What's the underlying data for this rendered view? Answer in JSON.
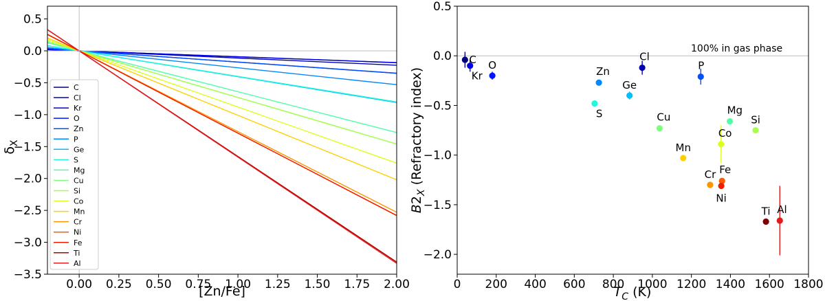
{
  "chart_data": [
    {
      "type": "line",
      "panel": "left",
      "xlabel": "[Zn/Fe]",
      "ylabel": "δ_X",
      "xlim": [
        -0.2,
        2.0
      ],
      "ylim": [
        -3.5,
        0.7
      ],
      "xticks": [
        0.0,
        0.25,
        0.5,
        0.75,
        1.0,
        1.25,
        1.5,
        1.75,
        2.0
      ],
      "xtick_labels": [
        "0.00",
        "0.25",
        "0.50",
        "0.75",
        "1.00",
        "1.25",
        "1.50",
        "1.75",
        "2.00"
      ],
      "yticks": [
        0.5,
        0.0,
        -0.5,
        -1.0,
        -1.5,
        -2.0,
        -2.5,
        -3.0,
        -3.5
      ],
      "ytick_labels": [
        "0.5",
        "0.0",
        "−0.5",
        "−1.0",
        "−1.5",
        "−2.0",
        "−2.5",
        "−3.0",
        "−3.5"
      ],
      "reference_lines": {
        "x": 0.0,
        "y": 0.0
      },
      "legend_position": "lower-left",
      "series": [
        {
          "name": "C",
          "color": "#00007f",
          "slope": -0.093
        },
        {
          "name": "Cl",
          "color": "#0000b2",
          "slope": -0.113
        },
        {
          "name": "Kr",
          "color": "#0000e8",
          "slope": -0.092
        },
        {
          "name": "O",
          "color": "#0014ff",
          "slope": -0.176
        },
        {
          "name": "Zn",
          "color": "#0050ff",
          "slope": -0.175
        },
        {
          "name": "P",
          "color": "#0088ff",
          "slope": -0.265
        },
        {
          "name": "Ge",
          "color": "#00c0ff",
          "slope": -0.405
        },
        {
          "name": "S",
          "color": "#1ff8dd",
          "slope": -0.4
        },
        {
          "name": "Mg",
          "color": "#4fffa6",
          "slope": -0.64
        },
        {
          "name": "Cu",
          "color": "#7fff7f",
          "slope": -0.73
        },
        {
          "name": "Si",
          "color": "#a6ff4f",
          "slope": -0.73
        },
        {
          "name": "Co",
          "color": "#dcff1f",
          "slope": -0.88
        },
        {
          "name": "Mn",
          "color": "#ffd000",
          "slope": -1.01
        },
        {
          "name": "Cr",
          "color": "#ff9400",
          "slope": -1.265
        },
        {
          "name": "Ni",
          "color": "#ff5a00",
          "slope": -1.29
        },
        {
          "name": "Fe",
          "color": "#f01e00",
          "slope": -1.29
        },
        {
          "name": "Ti",
          "color": "#b20000",
          "slope": -1.655
        },
        {
          "name": "Al",
          "color": "#e31a1c",
          "slope": -1.665
        }
      ]
    },
    {
      "type": "scatter",
      "panel": "right",
      "xlabel": "T_C (K)",
      "ylabel": "B2_X (Refractory index)",
      "xlim": [
        0,
        1800
      ],
      "ylim": [
        -2.2,
        0.5
      ],
      "xticks": [
        0,
        200,
        400,
        600,
        800,
        1000,
        1200,
        1400,
        1600,
        1800
      ],
      "xtick_labels": [
        "0",
        "200",
        "400",
        "600",
        "800",
        "1000",
        "1200",
        "1400",
        "1600",
        "1800"
      ],
      "yticks": [
        0.5,
        0.0,
        -0.5,
        -1.0,
        -1.5,
        -2.0
      ],
      "ytick_labels": [
        "0.5",
        "0.0",
        "−0.5",
        "−1.0",
        "−1.5",
        "−2.0"
      ],
      "reference_line_y": 0.0,
      "annotation": "100% in gas phase",
      "points": [
        {
          "name": "C",
          "x": 40,
          "y": -0.04,
          "err": 0.08,
          "color": "#00007f",
          "label_pos": "right"
        },
        {
          "name": "Kr",
          "x": 66,
          "y": -0.1,
          "err": 0.06,
          "color": "#0000e8",
          "label_pos": "below-right"
        },
        {
          "name": "O",
          "x": 180,
          "y": -0.2,
          "err": 0.04,
          "color": "#0014ff",
          "label_pos": "above"
        },
        {
          "name": "Zn",
          "x": 726,
          "y": -0.27,
          "err": 0.02,
          "color": "#0088ff",
          "label_pos": "above-right"
        },
        {
          "name": "S",
          "x": 704,
          "y": -0.48,
          "err": 0.03,
          "color": "#1ff8dd",
          "label_pos": "below-right"
        },
        {
          "name": "Ge",
          "x": 883,
          "y": -0.4,
          "err": 0.04,
          "color": "#00c0ff",
          "label_pos": "above"
        },
        {
          "name": "Cl",
          "x": 948,
          "y": -0.12,
          "err": 0.07,
          "color": "#0000b2",
          "label_pos": "above-right"
        },
        {
          "name": "P",
          "x": 1248,
          "y": -0.21,
          "err": 0.08,
          "color": "#0050ff",
          "label_pos": "above-right"
        },
        {
          "name": "Cu",
          "x": 1037,
          "y": -0.73,
          "err": 0.03,
          "color": "#7fff7f",
          "label_pos": "above-right"
        },
        {
          "name": "Mg",
          "x": 1397,
          "y": -0.66,
          "err": 0.03,
          "color": "#4fffa6",
          "label_pos": "above-right"
        },
        {
          "name": "Si",
          "x": 1529,
          "y": -0.75,
          "err": 0.03,
          "color": "#a6ff4f",
          "label_pos": "above"
        },
        {
          "name": "Co",
          "x": 1352,
          "y": -0.89,
          "err": 0.19,
          "color": "#dcff1f",
          "label_pos": "above-right"
        },
        {
          "name": "Mn",
          "x": 1158,
          "y": -1.03,
          "err": 0.03,
          "color": "#ffd000",
          "label_pos": "above"
        },
        {
          "name": "Cr",
          "x": 1296,
          "y": -1.3,
          "err": 0.03,
          "color": "#ff9400",
          "label_pos": "above"
        },
        {
          "name": "Fe",
          "x": 1357,
          "y": -1.26,
          "err": 0.02,
          "color": "#ff5a00",
          "label_pos": "above-right"
        },
        {
          "name": "Ni",
          "x": 1353,
          "y": -1.31,
          "err": 0.03,
          "color": "#f01e00",
          "label_pos": "below"
        },
        {
          "name": "Ti",
          "x": 1582,
          "y": -1.67,
          "err": 0.03,
          "color": "#7f0000",
          "label_pos": "above"
        },
        {
          "name": "Al",
          "x": 1653,
          "y": -1.66,
          "err": 0.35,
          "color": "#e31a1c",
          "label_pos": "above-right"
        }
      ]
    }
  ]
}
